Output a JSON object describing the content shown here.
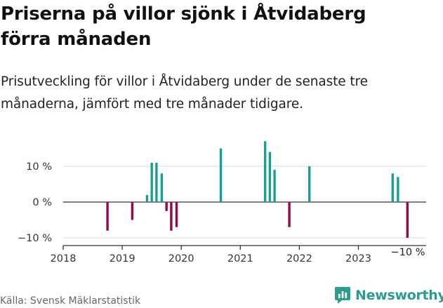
{
  "header": {
    "title_line1": "Priserna på villor sjönk i Åtvidaberg",
    "title_line2": "förra månaden",
    "subtitle_line1": "Prisutveckling för villor i Åtvidaberg under de senaste tre",
    "subtitle_line2": "månaderna, jämfört med tre månader tidigare."
  },
  "footer": {
    "source": "Källa: Svensk Mäklarstatistik",
    "brand": "Newsworthy"
  },
  "colors": {
    "positive": "#1a9e94",
    "negative": "#930a4b",
    "grid": "#d9d9d9",
    "axis": "#333333",
    "brand": "#2d9b90"
  },
  "chart_data": {
    "type": "bar",
    "title": "Prisutveckling för villor i Åtvidaberg",
    "xlabel": "",
    "ylabel": "",
    "ylim": [
      -10,
      15
    ],
    "xlim": [
      2018.0,
      2024.1
    ],
    "y_ticks": [
      {
        "value": 10,
        "label": "10 %"
      },
      {
        "value": 0,
        "label": "0 %"
      },
      {
        "value": -10,
        "label": "−10 %"
      }
    ],
    "x_ticks": [
      {
        "value": 2018,
        "label": "2018"
      },
      {
        "value": 2019,
        "label": "2019"
      },
      {
        "value": 2020,
        "label": "2020"
      },
      {
        "value": 2021,
        "label": "2021"
      },
      {
        "value": 2022,
        "label": "2022"
      },
      {
        "value": 2023,
        "label": "2023"
      }
    ],
    "annotation": {
      "label": "−10 %",
      "date": "2023-10",
      "value": -10
    },
    "grid": true,
    "bars": [
      {
        "date": "2018-10",
        "x": 2018.75,
        "value": -8
      },
      {
        "date": "2019-03",
        "x": 2019.17,
        "value": -5
      },
      {
        "date": "2019-06",
        "x": 2019.42,
        "value": 2
      },
      {
        "date": "2019-07",
        "x": 2019.5,
        "value": 11
      },
      {
        "date": "2019-08",
        "x": 2019.58,
        "value": 11
      },
      {
        "date": "2019-09",
        "x": 2019.67,
        "value": 8
      },
      {
        "date": "2019-10",
        "x": 2019.75,
        "value": -2.5
      },
      {
        "date": "2019-11",
        "x": 2019.83,
        "value": -8
      },
      {
        "date": "2019-12",
        "x": 2019.92,
        "value": -7
      },
      {
        "date": "2020-09",
        "x": 2020.67,
        "value": 15
      },
      {
        "date": "2021-06",
        "x": 2021.42,
        "value": 17
      },
      {
        "date": "2021-07",
        "x": 2021.5,
        "value": 14
      },
      {
        "date": "2021-08",
        "x": 2021.58,
        "value": 9
      },
      {
        "date": "2021-11",
        "x": 2021.83,
        "value": -7
      },
      {
        "date": "2022-03",
        "x": 2022.17,
        "value": 10
      },
      {
        "date": "2023-08",
        "x": 2023.58,
        "value": 8
      },
      {
        "date": "2023-09",
        "x": 2023.67,
        "value": 7
      },
      {
        "date": "2023-10",
        "x": 2023.83,
        "value": -10
      }
    ]
  }
}
